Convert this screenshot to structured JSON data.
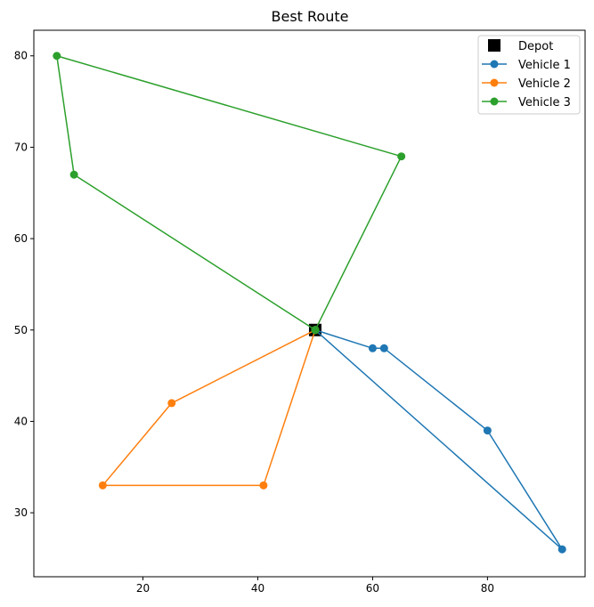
{
  "chart_data": {
    "type": "line",
    "title": "Best Route",
    "xlabel": "",
    "ylabel": "",
    "xlim": [
      1.0,
      97.0
    ],
    "ylim": [
      23.0,
      82.8
    ],
    "xticks": [
      20,
      40,
      60,
      80
    ],
    "yticks": [
      30,
      40,
      50,
      60,
      70,
      80
    ],
    "grid": false,
    "legend_position": "top-right",
    "depot": {
      "name": "Depot",
      "x": 50,
      "y": 50,
      "color": "#000000",
      "marker": "square"
    },
    "series": [
      {
        "name": "Vehicle 1",
        "color": "#1f77b4",
        "marker": "circle",
        "x": [
          50,
          60,
          62,
          80,
          93,
          50
        ],
        "y": [
          50,
          48,
          48,
          39,
          26,
          50
        ]
      },
      {
        "name": "Vehicle 2",
        "color": "#ff7f0e",
        "marker": "circle",
        "x": [
          50,
          25,
          13,
          41,
          50
        ],
        "y": [
          50,
          42,
          33,
          33,
          50
        ]
      },
      {
        "name": "Vehicle 3",
        "color": "#2ca02c",
        "marker": "circle",
        "x": [
          50,
          8,
          5,
          65,
          50
        ],
        "y": [
          50,
          67,
          80,
          69,
          50
        ]
      }
    ]
  }
}
